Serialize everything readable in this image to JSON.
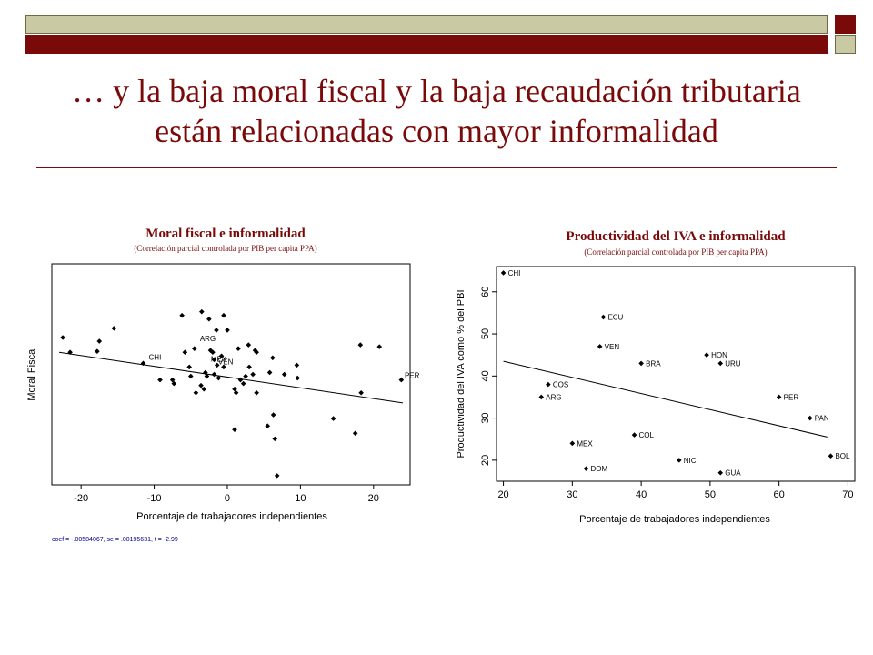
{
  "slide": {
    "title_line1": "… y la baja moral fiscal y la baja recaudación tributaria",
    "title_line2": "están relacionadas con mayor informalidad"
  },
  "chart_data": [
    {
      "type": "scatter",
      "title": "Moral fiscal e informalidad",
      "subtitle": "(Correlación parcial controlada  por PIB per capita PPA)",
      "xlabel": "Porcentaje de trabajadores independientes",
      "ylabel": "Moral Fiscal",
      "xlim": [
        -24,
        25
      ],
      "ylim": [
        -0.6,
        0.6
      ],
      "xticks": [
        -20,
        -10,
        0,
        10,
        20
      ],
      "grid": false,
      "footnote": "coef = -.00584067, se = .00195631, t = -2.99",
      "fit_line": {
        "x": [
          -23,
          24
        ],
        "y": [
          0.12,
          -0.155
        ]
      },
      "labels": [
        {
          "text": "ARG",
          "x": -4,
          "y": 0.18
        },
        {
          "text": "CHI",
          "x": -11,
          "y": 0.08
        },
        {
          "text": "MEX",
          "x": -2.5,
          "y": 0.07
        },
        {
          "text": "VEN",
          "x": -1.5,
          "y": 0.055
        },
        {
          "text": "PER",
          "x": 24,
          "y": -0.02
        }
      ],
      "points": [
        {
          "x": -22.5,
          "y": 0.2
        },
        {
          "x": -21.5,
          "y": 0.12
        },
        {
          "x": -17.5,
          "y": 0.18
        },
        {
          "x": -17.8,
          "y": 0.125
        },
        {
          "x": -15.5,
          "y": 0.25
        },
        {
          "x": -11.5,
          "y": 0.06
        },
        {
          "x": -9.2,
          "y": -0.03
        },
        {
          "x": -7.5,
          "y": -0.03
        },
        {
          "x": -7.3,
          "y": -0.05
        },
        {
          "x": -6.2,
          "y": 0.32
        },
        {
          "x": -5.8,
          "y": 0.12
        },
        {
          "x": -5.2,
          "y": 0.04
        },
        {
          "x": -5.0,
          "y": -0.01
        },
        {
          "x": -4.5,
          "y": 0.14
        },
        {
          "x": -4.3,
          "y": -0.1
        },
        {
          "x": -3.5,
          "y": 0.34
        },
        {
          "x": -3.2,
          "y": -0.08
        },
        {
          "x": -3.6,
          "y": -0.06
        },
        {
          "x": -3.0,
          "y": 0.01
        },
        {
          "x": -2.5,
          "y": 0.3
        },
        {
          "x": -2.3,
          "y": 0.13
        },
        {
          "x": -2.0,
          "y": 0.12
        },
        {
          "x": -1.8,
          "y": 0.08
        },
        {
          "x": -1.4,
          "y": 0.05
        },
        {
          "x": -1.8,
          "y": 0.0
        },
        {
          "x": -1.2,
          "y": -0.02
        },
        {
          "x": -0.8,
          "y": 0.1
        },
        {
          "x": -0.5,
          "y": 0.04
        },
        {
          "x": -2.8,
          "y": -0.01
        },
        {
          "x": -0.5,
          "y": 0.32
        },
        {
          "x": 0,
          "y": 0.24
        },
        {
          "x": -1.5,
          "y": 0.24
        },
        {
          "x": 1.0,
          "y": -0.08
        },
        {
          "x": 1.2,
          "y": -0.1
        },
        {
          "x": 1.5,
          "y": 0.14
        },
        {
          "x": 1.8,
          "y": -0.03
        },
        {
          "x": 2.2,
          "y": -0.05
        },
        {
          "x": 2.5,
          "y": -0.01
        },
        {
          "x": 2.9,
          "y": 0.16
        },
        {
          "x": 3.0,
          "y": 0.04
        },
        {
          "x": 3.5,
          "y": 0.0
        },
        {
          "x": 3.8,
          "y": 0.13
        },
        {
          "x": 4.0,
          "y": -0.1
        },
        {
          "x": 4.0,
          "y": 0.12
        },
        {
          "x": 1.0,
          "y": -0.3
        },
        {
          "x": 5.5,
          "y": -0.28
        },
        {
          "x": 5.8,
          "y": 0.01
        },
        {
          "x": 6.2,
          "y": 0.09
        },
        {
          "x": 6.3,
          "y": -0.22
        },
        {
          "x": 6.5,
          "y": -0.35
        },
        {
          "x": 6.8,
          "y": -0.55
        },
        {
          "x": 7.8,
          "y": 0.0
        },
        {
          "x": 9.5,
          "y": 0.05
        },
        {
          "x": 9.6,
          "y": -0.02
        },
        {
          "x": 14.5,
          "y": -0.24
        },
        {
          "x": 17.5,
          "y": -0.32
        },
        {
          "x": 18.2,
          "y": 0.16
        },
        {
          "x": 18.3,
          "y": -0.1
        },
        {
          "x": 20.8,
          "y": 0.15
        },
        {
          "x": 23.8,
          "y": -0.03
        }
      ]
    },
    {
      "type": "scatter",
      "title": "Productividad del IVA e informalidad",
      "subtitle": "(Correlación parcial controlada  por PIB per capita PPA)",
      "xlabel": "Porcentaje de trabajadores independientes",
      "ylabel": "Productividad del IVA como % del PBI",
      "xlim": [
        19,
        71
      ],
      "ylim": [
        15,
        66
      ],
      "xticks": [
        20,
        30,
        40,
        50,
        60,
        70
      ],
      "yticks": [
        20,
        30,
        40,
        50,
        60
      ],
      "grid": false,
      "fit_line": {
        "x": [
          20,
          67
        ],
        "y": [
          43.5,
          25.5
        ]
      },
      "points": [
        {
          "label": "CHI",
          "x": 20,
          "y": 64.5
        },
        {
          "label": "ECU",
          "x": 34.5,
          "y": 54
        },
        {
          "label": "VEN",
          "x": 34,
          "y": 47
        },
        {
          "label": "BRA",
          "x": 40,
          "y": 43
        },
        {
          "label": "COS",
          "x": 26.5,
          "y": 38
        },
        {
          "label": "ARG",
          "x": 25.5,
          "y": 35
        },
        {
          "label": "HON",
          "x": 49.5,
          "y": 45
        },
        {
          "label": "URU",
          "x": 51.5,
          "y": 43
        },
        {
          "label": "PER",
          "x": 60,
          "y": 35
        },
        {
          "label": "PAN",
          "x": 64.5,
          "y": 30
        },
        {
          "label": "COL",
          "x": 39,
          "y": 26
        },
        {
          "label": "MEX",
          "x": 30,
          "y": 24
        },
        {
          "label": "BOL",
          "x": 67.5,
          "y": 21
        },
        {
          "label": "NIC",
          "x": 45.5,
          "y": 20
        },
        {
          "label": "DOM",
          "x": 32,
          "y": 18
        },
        {
          "label": "GUA",
          "x": 51.5,
          "y": 17
        }
      ]
    }
  ]
}
